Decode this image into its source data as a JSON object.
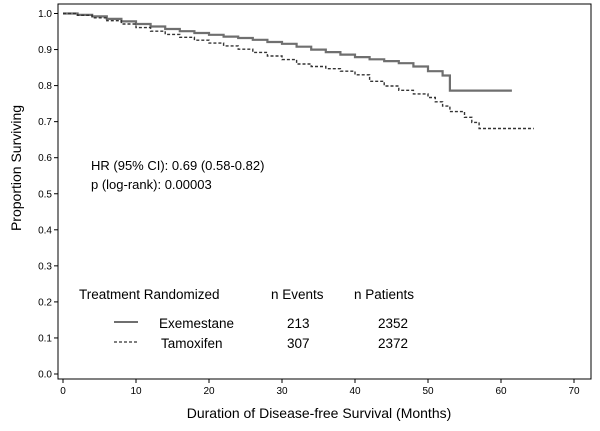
{
  "chart_data": {
    "type": "line",
    "title": "",
    "xlabel": "Duration of Disease-free Survival  (Months)",
    "ylabel": "Proportion Surviving",
    "xlim": [
      0,
      70
    ],
    "ylim": [
      0,
      1.0
    ],
    "xticks": [
      "0",
      "10",
      "20",
      "30",
      "40",
      "50",
      "60",
      "70"
    ],
    "yticks": [
      "0.0",
      "0.1",
      "0.2",
      "0.3",
      "0.4",
      "0.5",
      "0.6",
      "0.7",
      "0.8",
      "0.9",
      "1.0"
    ],
    "grid": false,
    "annotations": [
      "HR (95% CI): 0.69 (0.58-0.82)",
      "p (log-rank):  0.00003"
    ],
    "legend": {
      "placement": "bottom-left",
      "headers": [
        "Treatment Randomized",
        "n Events",
        "n Patients"
      ],
      "rows": [
        {
          "name": "Exemestane",
          "style": "solid",
          "color": "#6f6f6f",
          "events": "213",
          "patients": "2352"
        },
        {
          "name": "Tamoxifen",
          "style": "dashed",
          "color": "#333333",
          "events": "307",
          "patients": "2372"
        }
      ]
    },
    "series": [
      {
        "name": "Exemestane",
        "style": "solid",
        "color": "#6f6f6f",
        "x": [
          0,
          2,
          4,
          6,
          8,
          10,
          12,
          14,
          16,
          18,
          20,
          22,
          24,
          26,
          28,
          30,
          32,
          34,
          36,
          38,
          40,
          42,
          44,
          46,
          48,
          50,
          52,
          53,
          54,
          56,
          58,
          60,
          61.5
        ],
        "y": [
          1.0,
          0.996,
          0.992,
          0.985,
          0.978,
          0.971,
          0.964,
          0.957,
          0.951,
          0.946,
          0.941,
          0.936,
          0.932,
          0.927,
          0.921,
          0.916,
          0.908,
          0.9,
          0.893,
          0.886,
          0.879,
          0.873,
          0.868,
          0.862,
          0.853,
          0.84,
          0.828,
          0.786,
          0.786,
          0.786,
          0.786,
          0.786,
          0.786
        ]
      },
      {
        "name": "Tamoxifen",
        "style": "dashed",
        "color": "#333333",
        "x": [
          0,
          2,
          4,
          6,
          8,
          10,
          12,
          14,
          16,
          18,
          20,
          22,
          24,
          26,
          28,
          30,
          32,
          34,
          36,
          38,
          40,
          42,
          44,
          46,
          48,
          50,
          51,
          52,
          53,
          54,
          55,
          56,
          57,
          60,
          64.5
        ],
        "y": [
          1.0,
          0.995,
          0.988,
          0.98,
          0.971,
          0.961,
          0.951,
          0.942,
          0.934,
          0.926,
          0.918,
          0.91,
          0.901,
          0.892,
          0.882,
          0.872,
          0.86,
          0.853,
          0.847,
          0.84,
          0.83,
          0.812,
          0.799,
          0.787,
          0.777,
          0.767,
          0.755,
          0.743,
          0.728,
          0.728,
          0.712,
          0.698,
          0.681,
          0.681,
          0.681
        ]
      }
    ]
  }
}
